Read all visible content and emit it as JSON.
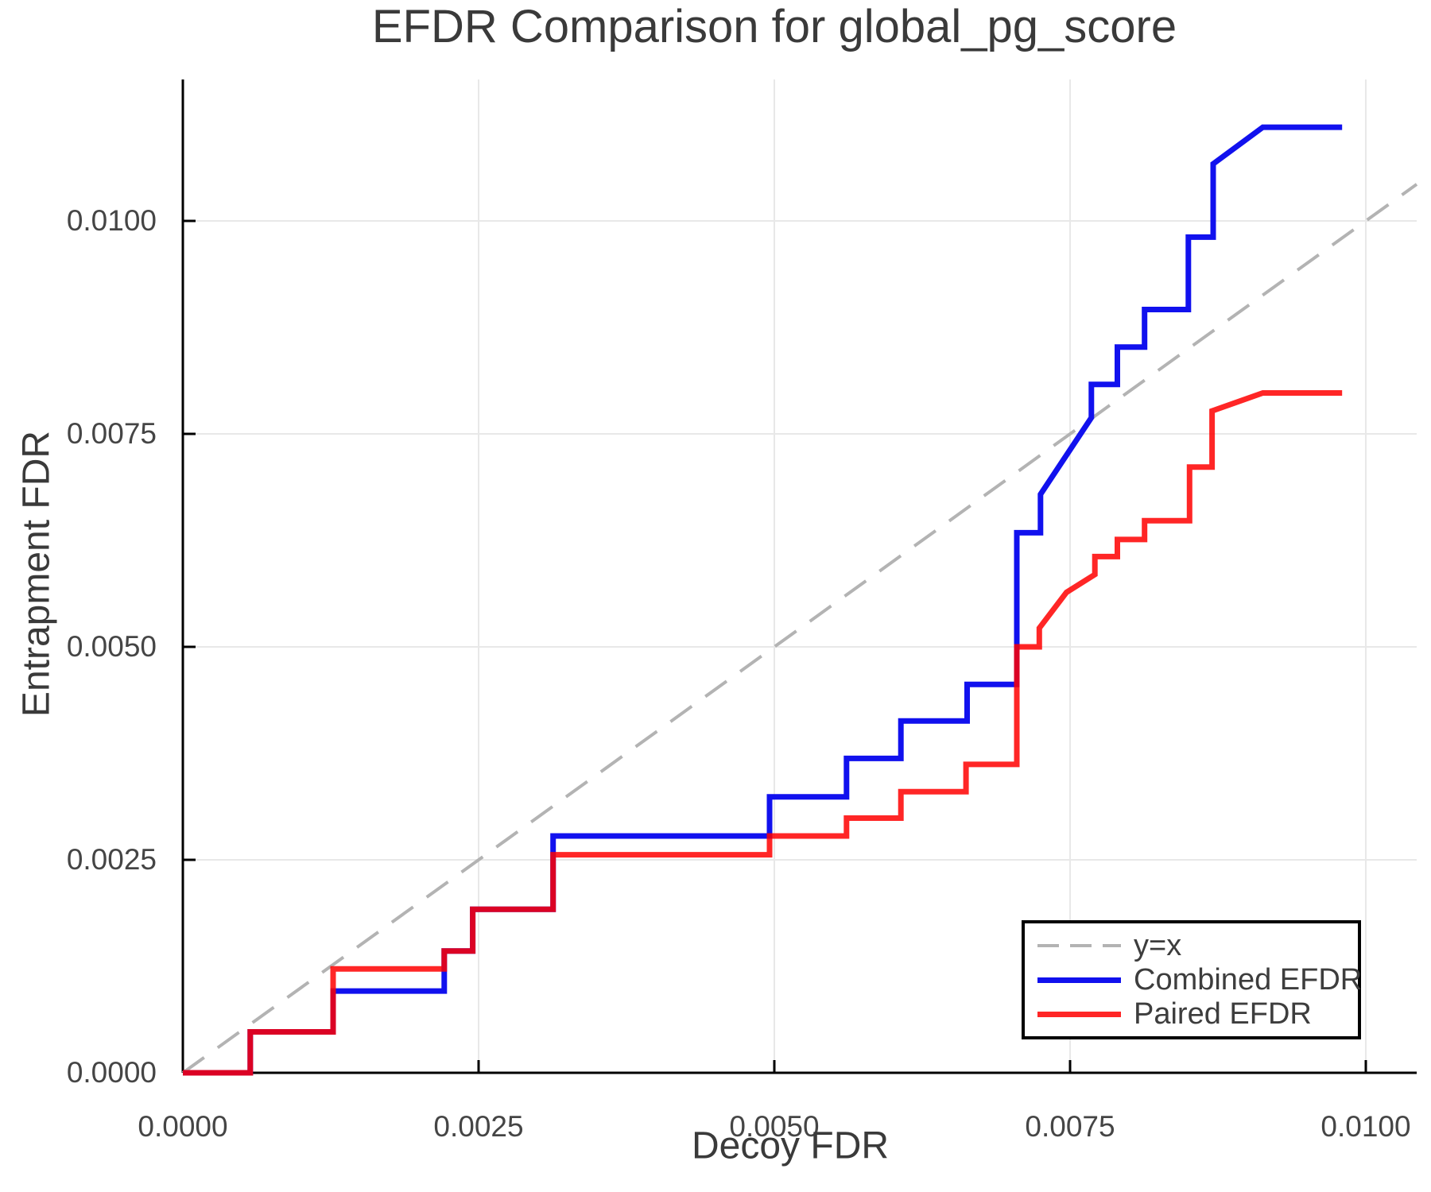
{
  "chart_data": {
    "type": "line",
    "title": "EFDR Comparison for global_pg_score",
    "xlabel": "Decoy FDR",
    "ylabel": "Entrapment FDR",
    "xlim": [
      0,
      0.01043
    ],
    "ylim": [
      0,
      0.01166
    ],
    "grid": true,
    "x_ticks": {
      "values": [
        0,
        0.0025,
        0.005,
        0.0075,
        0.01
      ],
      "labels": [
        "0.0000",
        "0.0025",
        "0.0050",
        "0.0075",
        "0.0100"
      ]
    },
    "y_ticks": {
      "values": [
        0,
        0.0025,
        0.005,
        0.0075,
        0.01
      ],
      "labels": [
        "0.0000",
        "0.0025",
        "0.0050",
        "0.0075",
        "0.0100"
      ]
    },
    "legend": {
      "position": "bottom-right",
      "items": [
        {
          "label": "y=x",
          "style": "dashed",
          "color": "#b3b3b3",
          "opacity": 1
        },
        {
          "label": "Combined EFDR",
          "style": "solid",
          "color": "#1111ee",
          "opacity": 1
        },
        {
          "label": "Paired EFDR",
          "style": "solid",
          "color": "#ff0000",
          "opacity": 0.85
        }
      ]
    },
    "series": [
      {
        "name": "y=x",
        "color": "#b3b3b3",
        "width": 4,
        "dash": true,
        "opacity": 1,
        "points": [
          [
            0,
            0
          ],
          [
            0.01043,
            0.01043
          ]
        ]
      },
      {
        "name": "Combined EFDR",
        "color": "#1111ee",
        "width": 7,
        "dash": false,
        "opacity": 1,
        "points": [
          [
            0.0,
            0.0
          ],
          [
            0.00057,
            0.0
          ],
          [
            0.00057,
            0.00048
          ],
          [
            0.00127,
            0.00048
          ],
          [
            0.00127,
            0.00096
          ],
          [
            0.00221,
            0.00096
          ],
          [
            0.00221,
            0.00143
          ],
          [
            0.00245,
            0.00143
          ],
          [
            0.00245,
            0.00192
          ],
          [
            0.00313,
            0.00192
          ],
          [
            0.00313,
            0.00278
          ],
          [
            0.00496,
            0.00278
          ],
          [
            0.00496,
            0.00324
          ],
          [
            0.00561,
            0.00324
          ],
          [
            0.00561,
            0.00369
          ],
          [
            0.00607,
            0.00369
          ],
          [
            0.00607,
            0.00413
          ],
          [
            0.00663,
            0.00413
          ],
          [
            0.00663,
            0.00456
          ],
          [
            0.00705,
            0.00456
          ],
          [
            0.00705,
            0.00634
          ],
          [
            0.00725,
            0.00634
          ],
          [
            0.00725,
            0.00679
          ],
          [
            0.00768,
            0.00769
          ],
          [
            0.00768,
            0.00808
          ],
          [
            0.0079,
            0.00808
          ],
          [
            0.0079,
            0.00852
          ],
          [
            0.00813,
            0.00852
          ],
          [
            0.00813,
            0.00896
          ],
          [
            0.0085,
            0.00896
          ],
          [
            0.0085,
            0.00981
          ],
          [
            0.00871,
            0.00981
          ],
          [
            0.00871,
            0.01067
          ],
          [
            0.00913,
            0.0111
          ],
          [
            0.0098,
            0.0111
          ]
        ]
      },
      {
        "name": "Paired EFDR",
        "color": "#ff0000",
        "width": 7,
        "dash": false,
        "opacity": 0.85,
        "points": [
          [
            0.0,
            0.0
          ],
          [
            0.00057,
            0.0
          ],
          [
            0.00057,
            0.00048
          ],
          [
            0.00127,
            0.00048
          ],
          [
            0.00127,
            0.00122
          ],
          [
            0.00221,
            0.00122
          ],
          [
            0.00221,
            0.00143
          ],
          [
            0.00245,
            0.00143
          ],
          [
            0.00245,
            0.00192
          ],
          [
            0.00313,
            0.00192
          ],
          [
            0.00313,
            0.00256
          ],
          [
            0.00496,
            0.00256
          ],
          [
            0.00496,
            0.00278
          ],
          [
            0.00561,
            0.00278
          ],
          [
            0.00561,
            0.00299
          ],
          [
            0.00607,
            0.00299
          ],
          [
            0.00607,
            0.0033
          ],
          [
            0.00662,
            0.0033
          ],
          [
            0.00662,
            0.00362
          ],
          [
            0.00705,
            0.00362
          ],
          [
            0.00705,
            0.005
          ],
          [
            0.00724,
            0.005
          ],
          [
            0.00724,
            0.00522
          ],
          [
            0.00747,
            0.00564
          ],
          [
            0.00771,
            0.00585
          ],
          [
            0.00771,
            0.00606
          ],
          [
            0.0079,
            0.00606
          ],
          [
            0.0079,
            0.00626
          ],
          [
            0.00813,
            0.00626
          ],
          [
            0.00813,
            0.00648
          ],
          [
            0.00851,
            0.00648
          ],
          [
            0.00851,
            0.00711
          ],
          [
            0.0087,
            0.00711
          ],
          [
            0.0087,
            0.00777
          ],
          [
            0.00913,
            0.00798
          ],
          [
            0.0098,
            0.00798
          ]
        ]
      }
    ]
  }
}
